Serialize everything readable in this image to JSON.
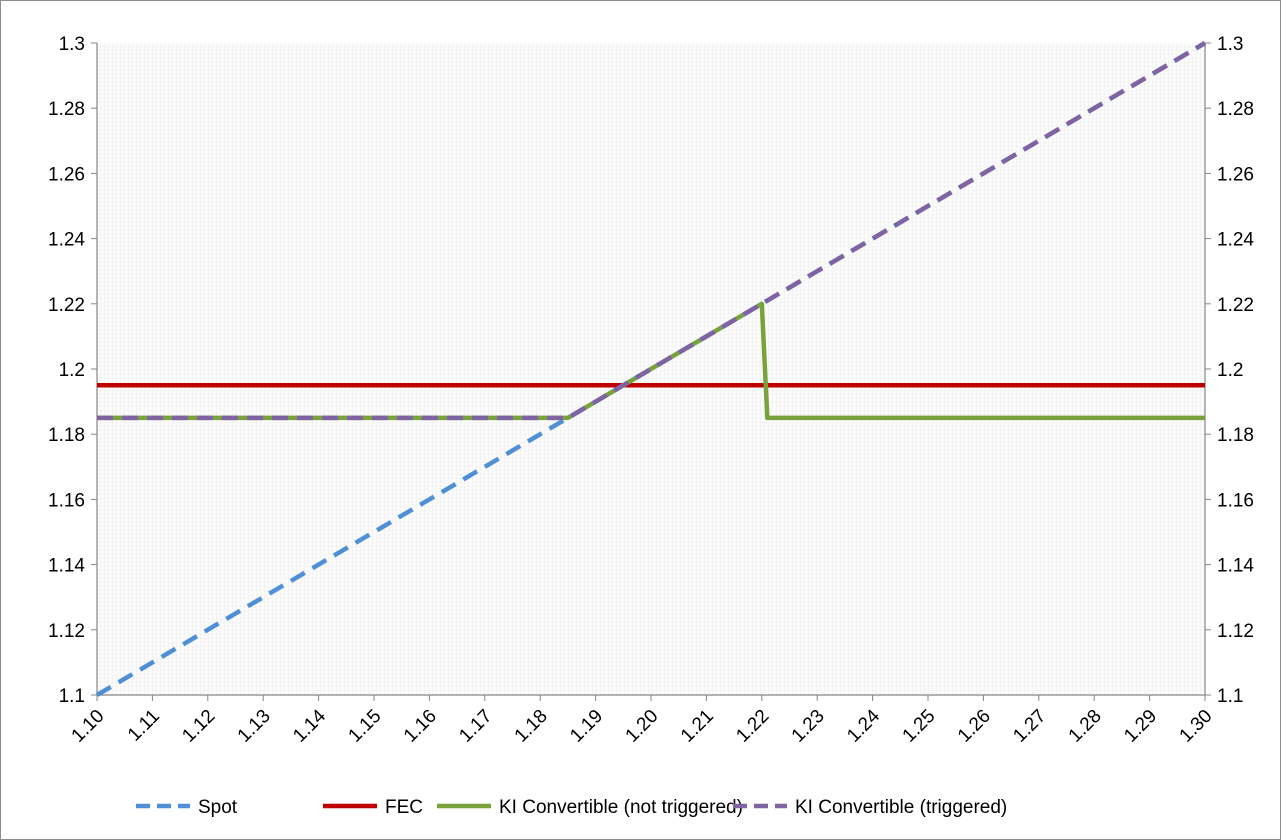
{
  "chart_data": {
    "type": "line",
    "title": "",
    "xlabel": "",
    "ylabel": "",
    "x_ticks": [
      "1.10",
      "1.11",
      "1.12",
      "1.13",
      "1.14",
      "1.15",
      "1.16",
      "1.17",
      "1.18",
      "1.19",
      "1.20",
      "1.21",
      "1.22",
      "1.23",
      "1.24",
      "1.25",
      "1.26",
      "1.27",
      "1.28",
      "1.29",
      "1.30"
    ],
    "x_range": [
      1.1,
      1.3
    ],
    "y_ticks": [
      "1.1",
      "1.12",
      "1.14",
      "1.16",
      "1.18",
      "1.2",
      "1.22",
      "1.24",
      "1.26",
      "1.28",
      "1.3"
    ],
    "ylim": [
      1.1,
      1.3
    ],
    "secondary_y_ticks": [
      "1.1",
      "1.12",
      "1.14",
      "1.16",
      "1.18",
      "1.2",
      "1.22",
      "1.24",
      "1.26",
      "1.28",
      "1.3"
    ],
    "grid": "on (fine light-gray gridlines)",
    "legend_position": "bottom",
    "series": [
      {
        "name": "Spot",
        "color": "#4f8fd6",
        "style": "dashed",
        "points": [
          [
            1.1,
            1.1
          ],
          [
            1.3,
            1.3
          ]
        ]
      },
      {
        "name": "FEC",
        "color": "#c00000",
        "style": "solid",
        "points": [
          [
            1.1,
            1.195
          ],
          [
            1.3,
            1.195
          ]
        ]
      },
      {
        "name": "KI Convertible (not triggered)",
        "color": "#77a23c",
        "style": "solid",
        "points": [
          [
            1.1,
            1.185
          ],
          [
            1.185,
            1.185
          ],
          [
            1.22,
            1.22
          ],
          [
            1.221,
            1.185
          ],
          [
            1.3,
            1.185
          ]
        ]
      },
      {
        "name": "KI Convertible (triggered)",
        "color": "#8064a2",
        "style": "dashed",
        "points": [
          [
            1.1,
            1.185
          ],
          [
            1.185,
            1.185
          ],
          [
            1.3,
            1.3
          ]
        ]
      }
    ]
  }
}
